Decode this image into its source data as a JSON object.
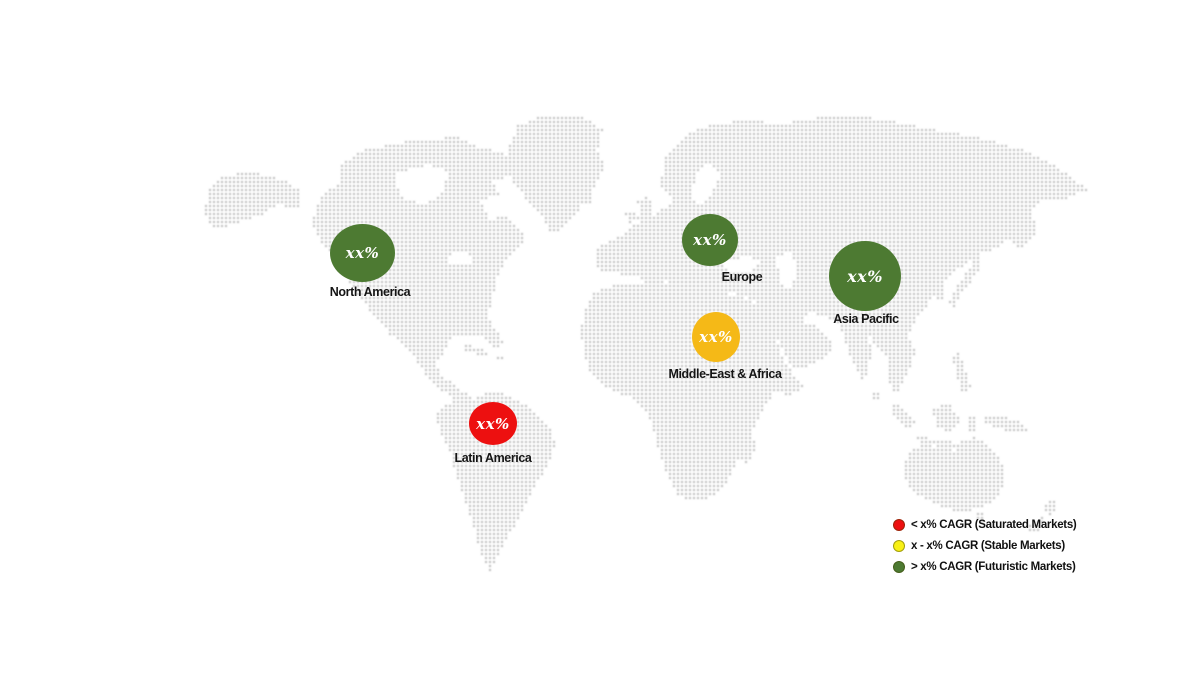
{
  "map": {
    "dot_color": "#d2d2d2",
    "background": "#ffffff"
  },
  "regions": [
    {
      "id": "north-america",
      "label": "North America",
      "value": "xx%",
      "color": "#4d7a32"
    },
    {
      "id": "europe",
      "label": "Europe",
      "value": "xx%",
      "color": "#4d7a32"
    },
    {
      "id": "asia-pacific",
      "label": "Asia Pacific",
      "value": "xx%",
      "color": "#4d7a32"
    },
    {
      "id": "middle-east-africa",
      "label": "Middle-East & Africa",
      "value": "xx%",
      "color": "#f5b917"
    },
    {
      "id": "latin-america",
      "label": "Latin America",
      "value": "xx%",
      "color": "#ed1010"
    }
  ],
  "legend": {
    "items": [
      {
        "label": "< x% CAGR (Saturated Markets)",
        "color": "#ed1010"
      },
      {
        "label": "x - x% CAGR (Stable Markets)",
        "color": "#f8f014"
      },
      {
        "label": "> x% CAGR (Futuristic Markets)",
        "color": "#4d7a32"
      }
    ]
  }
}
